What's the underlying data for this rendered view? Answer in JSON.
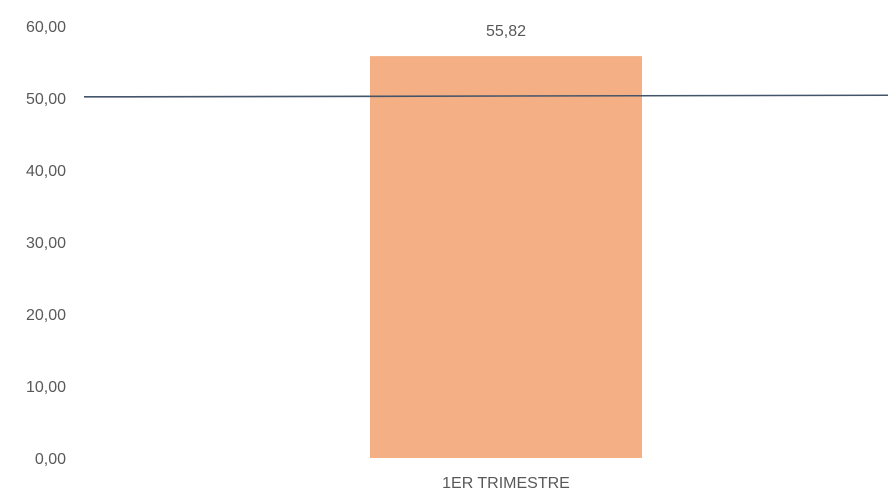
{
  "chart_data": {
    "type": "bar",
    "categories": [
      "1ER TRIMESTRE"
    ],
    "series": [
      {
        "values": [
          55.82
        ],
        "color": "#f4b084",
        "data_labels": [
          "55,82"
        ]
      }
    ],
    "reference_line": {
      "value": 50.27,
      "color": "#44546a"
    },
    "y_ticks": [
      "0,00",
      "10,00",
      "20,00",
      "30,00",
      "40,00",
      "50,00",
      "60,00"
    ],
    "ylim": [
      0,
      60
    ],
    "grid": false,
    "legend": "none",
    "title": "",
    "xlabel": "",
    "ylabel": ""
  }
}
